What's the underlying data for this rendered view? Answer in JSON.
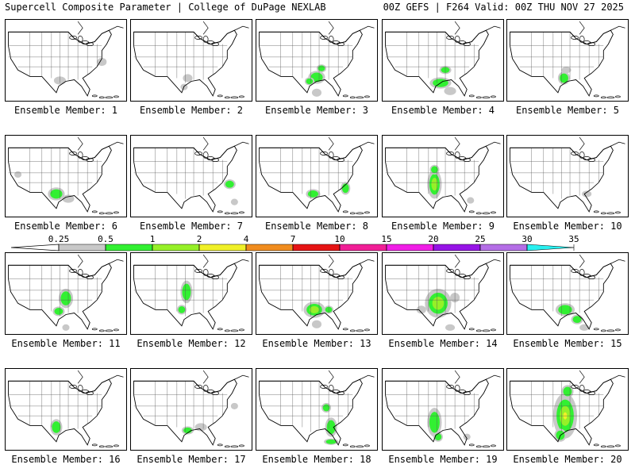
{
  "header": {
    "left": "Supercell Composite Parameter | College of DuPage NEXLAB",
    "right": "00Z GEFS | F264 Valid: 00Z THU NOV 27 2025"
  },
  "panels": [
    {
      "label": "Ensemble Member: 1",
      "blobs": [
        [
          0.45,
          0.75,
          0.05,
          0.05,
          1
        ],
        [
          0.8,
          0.52,
          0.04,
          0.05,
          1
        ]
      ]
    },
    {
      "label": "Ensemble Member: 2",
      "blobs": [
        [
          0.47,
          0.72,
          0.04,
          0.05,
          1
        ],
        [
          0.44,
          0.83,
          0.03,
          0.04,
          1
        ]
      ]
    },
    {
      "label": "Ensemble Member: 3",
      "blobs": [
        [
          0.5,
          0.71,
          0.07,
          0.08,
          2
        ],
        [
          0.54,
          0.6,
          0.04,
          0.05,
          2
        ],
        [
          0.44,
          0.76,
          0.04,
          0.05,
          2
        ],
        [
          0.5,
          0.9,
          0.04,
          0.05,
          1
        ]
      ]
    },
    {
      "label": "Ensemble Member: 4",
      "blobs": [
        [
          0.48,
          0.78,
          0.09,
          0.07,
          2
        ],
        [
          0.52,
          0.62,
          0.05,
          0.05,
          2
        ],
        [
          0.56,
          0.88,
          0.05,
          0.05,
          1
        ]
      ]
    },
    {
      "label": "Ensemble Member: 5",
      "blobs": [
        [
          0.47,
          0.72,
          0.05,
          0.08,
          2
        ],
        [
          0.49,
          0.62,
          0.04,
          0.04,
          1
        ]
      ]
    },
    {
      "label": "Ensemble Member: 6",
      "blobs": [
        [
          0.42,
          0.72,
          0.07,
          0.08,
          2
        ],
        [
          0.52,
          0.78,
          0.05,
          0.05,
          1
        ],
        [
          0.1,
          0.48,
          0.03,
          0.04,
          1
        ]
      ]
    },
    {
      "label": "Ensemble Member: 7",
      "blobs": [
        [
          0.82,
          0.6,
          0.05,
          0.06,
          2
        ],
        [
          0.86,
          0.82,
          0.03,
          0.04,
          1
        ]
      ]
    },
    {
      "label": "Ensemble Member: 8",
      "blobs": [
        [
          0.47,
          0.72,
          0.06,
          0.06,
          2
        ],
        [
          0.74,
          0.65,
          0.04,
          0.08,
          2
        ]
      ]
    },
    {
      "label": "Ensemble Member: 9",
      "blobs": [
        [
          0.43,
          0.6,
          0.06,
          0.18,
          3
        ],
        [
          0.43,
          0.42,
          0.04,
          0.06,
          2
        ],
        [
          0.73,
          0.8,
          0.03,
          0.04,
          1
        ]
      ]
    },
    {
      "label": "Ensemble Member: 10",
      "blobs": [
        [
          0.66,
          0.72,
          0.04,
          0.04,
          1
        ]
      ]
    },
    {
      "label": "Ensemble Member: 11",
      "blobs": [
        [
          0.5,
          0.56,
          0.06,
          0.12,
          2
        ],
        [
          0.44,
          0.72,
          0.05,
          0.06,
          2
        ],
        [
          0.5,
          0.92,
          0.03,
          0.04,
          1
        ]
      ]
    },
    {
      "label": "Ensemble Member: 12",
      "blobs": [
        [
          0.46,
          0.48,
          0.05,
          0.14,
          2
        ],
        [
          0.42,
          0.7,
          0.04,
          0.06,
          2
        ]
      ]
    },
    {
      "label": "Ensemble Member: 13",
      "blobs": [
        [
          0.48,
          0.7,
          0.09,
          0.1,
          3
        ],
        [
          0.6,
          0.7,
          0.04,
          0.05,
          2
        ],
        [
          0.5,
          0.88,
          0.04,
          0.05,
          1
        ]
      ]
    },
    {
      "label": "Ensemble Member: 14",
      "blobs": [
        [
          0.46,
          0.62,
          0.11,
          0.18,
          3
        ],
        [
          0.32,
          0.7,
          0.04,
          0.05,
          1
        ],
        [
          0.6,
          0.55,
          0.04,
          0.06,
          1
        ],
        [
          0.56,
          0.92,
          0.04,
          0.04,
          1
        ]
      ]
    },
    {
      "label": "Ensemble Member: 15",
      "blobs": [
        [
          0.48,
          0.7,
          0.08,
          0.08,
          2
        ],
        [
          0.58,
          0.82,
          0.05,
          0.06,
          2
        ],
        [
          0.64,
          0.92,
          0.04,
          0.04,
          1
        ]
      ]
    },
    {
      "label": "Ensemble Member: 16",
      "blobs": [
        [
          0.42,
          0.72,
          0.05,
          0.1,
          2
        ]
      ]
    },
    {
      "label": "Ensemble Member: 17",
      "blobs": [
        [
          0.47,
          0.76,
          0.05,
          0.05,
          2
        ],
        [
          0.58,
          0.72,
          0.05,
          0.05,
          1
        ],
        [
          0.86,
          0.46,
          0.03,
          0.04,
          1
        ]
      ]
    },
    {
      "label": "Ensemble Member: 18",
      "blobs": [
        [
          0.62,
          0.72,
          0.05,
          0.12,
          2
        ],
        [
          0.58,
          0.48,
          0.04,
          0.06,
          2
        ],
        [
          0.62,
          0.9,
          0.06,
          0.04,
          2
        ]
      ]
    },
    {
      "label": "Ensemble Member: 19",
      "blobs": [
        [
          0.43,
          0.66,
          0.06,
          0.18,
          2
        ],
        [
          0.46,
          0.84,
          0.04,
          0.06,
          2
        ],
        [
          0.7,
          0.84,
          0.03,
          0.04,
          1
        ]
      ]
    },
    {
      "label": "Ensemble Member: 20",
      "blobs": [
        [
          0.48,
          0.58,
          0.1,
          0.28,
          4
        ],
        [
          0.5,
          0.28,
          0.05,
          0.08,
          2
        ],
        [
          0.44,
          0.82,
          0.05,
          0.08,
          2
        ]
      ]
    }
  ],
  "colorbar": {
    "labels": [
      "0.25",
      "0.5",
      "1",
      "2",
      "4",
      "7",
      "10",
      "15",
      "20",
      "25",
      "30",
      "35"
    ],
    "colors": [
      "#c8c8c8",
      "#32f032",
      "#96f028",
      "#f0f028",
      "#f08c1e",
      "#e61414",
      "#f01e96",
      "#f01ee6",
      "#9614e6",
      "#b46ee6",
      "#28f0f0"
    ]
  },
  "map_colors": {
    "fill_1": "#c8c8c8",
    "fill_2": "#32f032",
    "fill_3": "#96f028",
    "fill_4": "#f0f028",
    "fill_5": "#f08c1e"
  }
}
